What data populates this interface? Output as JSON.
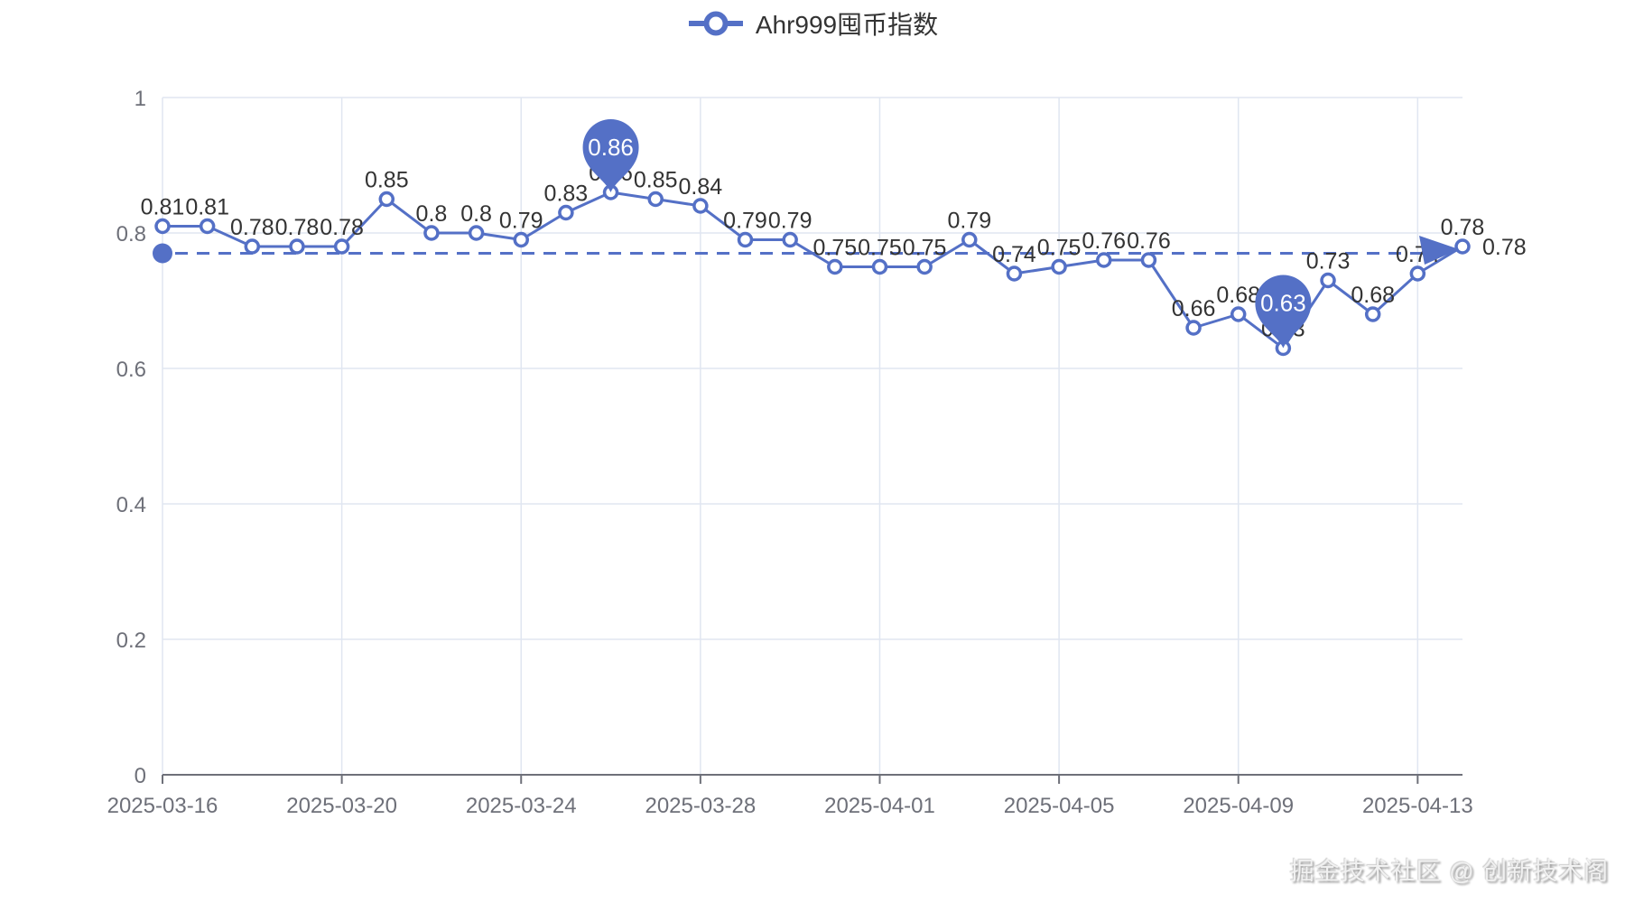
{
  "legend": {
    "label": "Ahr999囤币指数"
  },
  "watermark": "掘金技术社区 @ 创新技术阁",
  "chart_data": {
    "type": "line",
    "series_name": "Ahr999囤币指数",
    "legend_position": "top-center",
    "grid": true,
    "x": [
      "2025-03-16",
      "2025-03-17",
      "2025-03-18",
      "2025-03-19",
      "2025-03-20",
      "2025-03-21",
      "2025-03-22",
      "2025-03-23",
      "2025-03-24",
      "2025-03-25",
      "2025-03-26",
      "2025-03-27",
      "2025-03-28",
      "2025-03-29",
      "2025-03-30",
      "2025-03-31",
      "2025-04-01",
      "2025-04-02",
      "2025-04-03",
      "2025-04-04",
      "2025-04-05",
      "2025-04-06",
      "2025-04-07",
      "2025-04-08",
      "2025-04-09",
      "2025-04-10",
      "2025-04-11",
      "2025-04-12",
      "2025-04-13",
      "2025-04-14"
    ],
    "values": [
      0.81,
      0.81,
      0.78,
      0.78,
      0.78,
      0.85,
      0.8,
      0.8,
      0.79,
      0.83,
      0.86,
      0.85,
      0.84,
      0.79,
      0.79,
      0.75,
      0.75,
      0.75,
      0.79,
      0.74,
      0.75,
      0.76,
      0.76,
      0.66,
      0.68,
      0.63,
      0.73,
      0.68,
      0.74,
      0.78
    ],
    "point_labels": [
      "0.81",
      "0.81",
      "0.78",
      "0.78",
      "0.78",
      "0.85",
      "0.8",
      "0.8",
      "0.79",
      "0.83",
      "0.86",
      "0.85",
      "0.84",
      "0.79",
      "0.79",
      "0.75",
      "0.75",
      "0.75",
      "0.79",
      "0.74",
      "0.75",
      "0.76",
      "0.76",
      "0.66",
      "0.68",
      "0.63",
      "0.73",
      "0.68",
      "0.74",
      "0.78"
    ],
    "x_tick_labels": [
      "2025-03-16",
      "2025-03-20",
      "2025-03-24",
      "2025-03-28",
      "2025-04-01",
      "2025-04-05",
      "2025-04-09",
      "2025-04-13"
    ],
    "y_ticks": [
      "0",
      "0.2",
      "0.4",
      "0.6",
      "0.8",
      "1"
    ],
    "y_tick_values": [
      0,
      0.2,
      0.4,
      0.6,
      0.8,
      1
    ],
    "ylim": [
      0,
      1
    ],
    "markpoints": [
      {
        "kind": "max",
        "x": "2025-03-26",
        "value": 0.86,
        "label": "0.86"
      },
      {
        "kind": "min",
        "x": "2025-04-10",
        "value": 0.63,
        "label": "0.63"
      }
    ],
    "markline": {
      "kind": "average",
      "value": 0.77
    },
    "end_label": "0.78",
    "colors": {
      "series": "#5470c6",
      "point_fill": "#ffffff",
      "label": "#333333",
      "axis_label": "#6e7079",
      "axis_line": "#6e7079",
      "grid": "#e0e6f1",
      "pin_text": "#ffffff"
    }
  }
}
